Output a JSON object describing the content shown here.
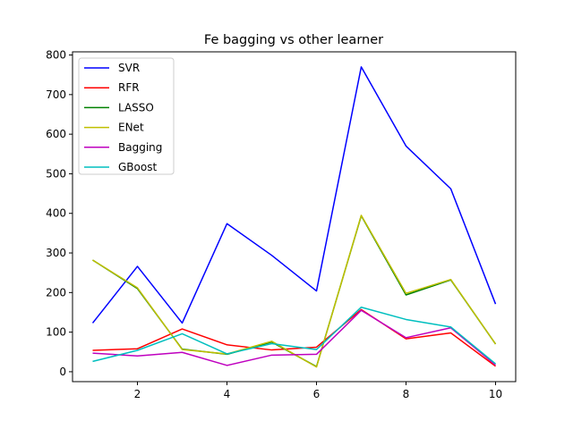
{
  "chart_data": {
    "type": "line",
    "title": "Fe bagging vs other learner",
    "xlabel": "",
    "ylabel": "",
    "x": [
      1,
      2,
      3,
      4,
      5,
      6,
      7,
      8,
      9,
      10
    ],
    "xlim": [
      0.55,
      10.45
    ],
    "ylim": [
      -25,
      808
    ],
    "x_ticks": [
      2,
      4,
      6,
      8,
      10
    ],
    "y_ticks": [
      0,
      100,
      200,
      300,
      400,
      500,
      600,
      700,
      800
    ],
    "grid": false,
    "legend_position": "upper-left",
    "series": [
      {
        "name": "SVR",
        "color": "#0000ff",
        "values": [
          123,
          266,
          123,
          374,
          294,
          204,
          770,
          570,
          462,
          171
        ]
      },
      {
        "name": "RFR",
        "color": "#ff0000",
        "values": [
          54,
          58,
          108,
          68,
          55,
          62,
          157,
          83,
          98,
          14
        ]
      },
      {
        "name": "LASSO",
        "color": "#008000",
        "values": [
          282,
          210,
          57,
          44,
          75,
          13,
          394,
          194,
          232,
          70
        ]
      },
      {
        "name": "ENet",
        "color": "#bfbf00",
        "values": [
          282,
          212,
          56,
          45,
          77,
          12,
          395,
          198,
          233,
          70
        ]
      },
      {
        "name": "Bagging",
        "color": "#bf00bf",
        "values": [
          47,
          40,
          49,
          16,
          42,
          44,
          155,
          86,
          111,
          17
        ]
      },
      {
        "name": "GBoost",
        "color": "#00bfbf",
        "values": [
          26,
          54,
          96,
          45,
          71,
          56,
          163,
          132,
          113,
          20
        ]
      }
    ]
  }
}
